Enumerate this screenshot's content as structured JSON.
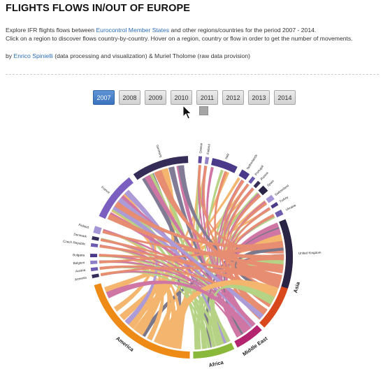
{
  "header": {
    "title": "FLIGHTS FLOWS IN/OUT OF EUROPE",
    "line1_pre": "Explore IFR flights flows between ",
    "line1_link": "Eurocontrol Member States",
    "line1_post": " and other regions/countries for the period 2007 - 2014.",
    "line2": "Click on a region to discover flows country-by-country. Hover on a region, country or flow in order to get the number of movements.",
    "credits_pre": "by ",
    "credits_link": "Enrico Spinielli",
    "credits_post": " (data processing and visualization) & Muriel Tholome (raw data provision)"
  },
  "years": [
    "2007",
    "2008",
    "2009",
    "2010",
    "2011",
    "2012",
    "2013",
    "2014"
  ],
  "selected_year": "2007",
  "regions": [
    {
      "name": "America",
      "color": "#ee8a16"
    },
    {
      "name": "Africa",
      "color": "#8ab83a"
    },
    {
      "name": "Middle East",
      "color": "#b4246e"
    },
    {
      "name": "Asia",
      "color": "#d9481c"
    }
  ],
  "countries": [
    {
      "name": "Germany",
      "color": "#352c57"
    },
    {
      "name": "Greece",
      "color": "#5d4a9c"
    },
    {
      "name": "Iceland",
      "color": "#9283c9"
    },
    {
      "name": "Italy",
      "color": "#4b3a8a"
    },
    {
      "name": "Netherlands",
      "color": "#4b3a8a"
    },
    {
      "name": "Portugal",
      "color": "#6c5bb0"
    },
    {
      "name": "Russia",
      "color": "#352c57"
    },
    {
      "name": "Spain",
      "color": "#2b2545"
    },
    {
      "name": "Switzerland",
      "color": "#a595d7"
    },
    {
      "name": "Turkey",
      "color": "#4b3a8a"
    },
    {
      "name": "Ukraine",
      "color": "#6c5bb0"
    },
    {
      "name": "United Kingdom",
      "color": "#2b2545"
    },
    {
      "name": "Armenia",
      "color": "#352c57"
    },
    {
      "name": "Austria",
      "color": "#6c5bb0"
    },
    {
      "name": "Belgium",
      "color": "#8e7fc8"
    },
    {
      "name": "Bulgaria",
      "color": "#4b3a8a"
    },
    {
      "name": "Czech Republic",
      "color": "#6c5bb0"
    },
    {
      "name": "Denmark",
      "color": "#352c57"
    },
    {
      "name": "Finland",
      "color": "#a595d7"
    },
    {
      "name": "France",
      "color": "#7a5ec0"
    }
  ]
}
